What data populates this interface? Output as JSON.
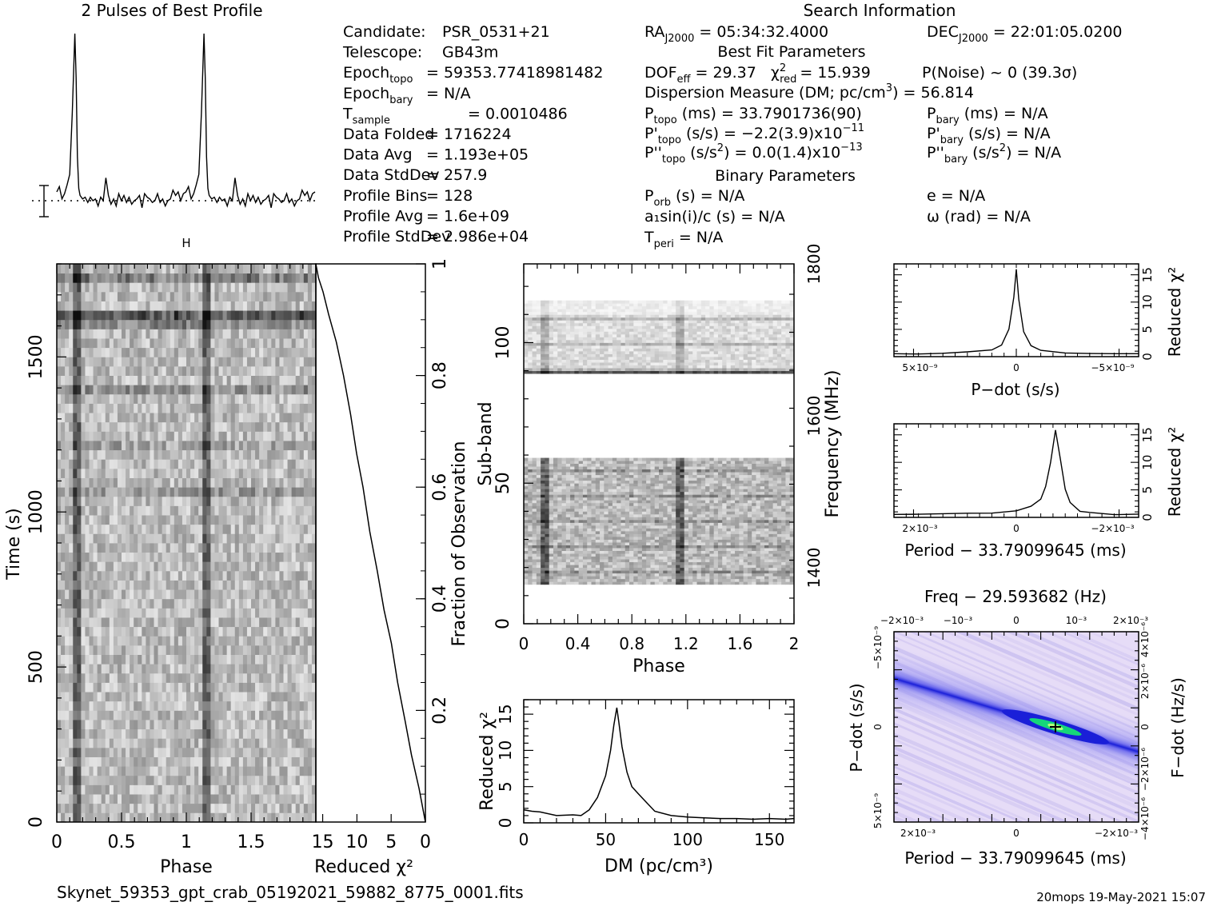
{
  "header": {
    "profile_title": "2 Pulses of Best Profile",
    "search_title": "Search Information",
    "best_fit_title": "Best Fit Parameters",
    "binary_title": "Binary Parameters",
    "footer_file": "Skynet_59353_gpt_crab_05192021_59882_8775_0001.fits",
    "footer_stamp": "20mops 19-May-2021 15:07"
  },
  "info_left": [
    {
      "label": "Candidate:",
      "sub": "",
      "value": "PSR_0531+21"
    },
    {
      "label": "Telescope:",
      "sub": "",
      "value": "GB43m"
    },
    {
      "label": "Epoch",
      "sub": "topo",
      "value": "= 59353.77418981482"
    },
    {
      "label": "Epoch",
      "sub": "bary",
      "value": "= N/A"
    },
    {
      "label": "T",
      "sub": "sample",
      "value": "=    0.0010486"
    },
    {
      "label": "Data Folded",
      "sub": "",
      "value": "=    1716224"
    },
    {
      "label": "Data Avg",
      "sub": "",
      "value": "=    1.193e+05"
    },
    {
      "label": "Data StdDev",
      "sub": "",
      "value": "=    257.9"
    },
    {
      "label": "Profile Bins",
      "sub": "",
      "value": "=    128"
    },
    {
      "label": "Profile Avg",
      "sub": "",
      "value": "=    1.6e+09"
    },
    {
      "label": "Profile StdDev",
      "sub": "",
      "value": "=    2.986e+04"
    }
  ],
  "info_mid": {
    "ra": "= 05:34:32.4000",
    "dof": "= 29.37",
    "chi2red": "= 15.939",
    "dm_line_a": "Dispersion Measure (DM; pc/cm",
    "dm_line_b": ") = 56.814",
    "p_topo": "(ms) =  33.7901736(90)",
    "pd_topo": "(s/s) = −2.2(3.9)x10",
    "pd_topo_exp": "−11",
    "pdd_topo": "(s/s",
    "pdd_topo_b": ") = 0.0(1.4)x10",
    "pdd_topo_exp": "−13",
    "p_orb": "(s) = N/A",
    "a1sini": "a₁sin(i)/c (s) = N/A",
    "t_peri": "= N/A"
  },
  "info_right": {
    "dec": "= 22:01:05.0200",
    "pnoise": "P(Noise) ~ 0    (39.3σ)",
    "p_bary": "(ms) = N/A",
    "pd_bary": "(s/s) = N/A",
    "pdd_bary": "(s/s",
    "pdd_bary_b": ") = N/A",
    "e": "e = N/A",
    "omega": "ω (rad) = N/A"
  },
  "chart_data": [
    {
      "type": "line",
      "id": "pulse_profile",
      "title": "2 Pulses of Best Profile",
      "x": [
        0.0,
        0.02,
        0.04,
        0.06,
        0.08,
        0.1,
        0.12,
        0.14,
        0.15,
        0.16,
        0.17,
        0.18,
        0.2,
        0.22,
        0.24,
        0.26,
        0.28,
        0.3,
        0.32,
        0.34,
        0.36,
        0.38,
        0.4,
        0.42,
        0.44,
        0.46,
        0.48,
        0.5,
        0.52,
        0.54,
        0.56,
        0.58,
        0.6,
        0.62,
        0.64,
        0.66,
        0.68,
        0.7,
        0.72,
        0.74,
        0.76,
        0.78,
        0.8,
        0.82,
        0.84,
        0.86,
        0.88,
        0.9,
        0.92,
        0.94,
        0.96,
        0.98,
        1.0
      ],
      "values": [
        0.1,
        0.13,
        0.06,
        0.09,
        0.14,
        0.2,
        0.55,
        1.0,
        0.75,
        0.3,
        0.12,
        0.08,
        0.06,
        0.07,
        0.04,
        0.07,
        0.05,
        0.06,
        0.02,
        0.07,
        0.05,
        0.18,
        0.08,
        0.03,
        0.06,
        0.02,
        0.09,
        0.05,
        0.08,
        0.04,
        0.07,
        0.03,
        0.05,
        0.06,
        0.08,
        0.01,
        0.09,
        0.07,
        0.06,
        0.04,
        0.05,
        0.09,
        0.04,
        0.06,
        0.02,
        0.05,
        0.06,
        0.11,
        0.08,
        0.1,
        0.05,
        0.09,
        0.1
      ],
      "phase_repeats": 2
    },
    {
      "type": "heatmap",
      "id": "time_phase",
      "xlabel": "Phase",
      "ylabel": "Time (s)",
      "xlim": [
        0,
        2
      ],
      "ylim": [
        0,
        1800
      ],
      "xticks": [
        "0",
        "0.5",
        "1",
        "1.5"
      ],
      "yticks": [
        "0",
        "500",
        "1000",
        "1500"
      ],
      "pulse_phases": [
        0.15,
        1.15
      ]
    },
    {
      "type": "line",
      "id": "chi2_vs_time",
      "xlabel": "Reduced χ²",
      "ylabel": "Fraction of Observation",
      "xlim": [
        16,
        0
      ],
      "ylim": [
        0,
        1
      ],
      "xticks": [
        "15",
        "10",
        "5",
        "0"
      ],
      "yticks": [
        "0.2",
        "0.4",
        "0.6",
        "0.8",
        "1"
      ],
      "x": [
        0,
        1,
        2,
        3,
        4,
        5,
        6,
        7,
        8,
        9,
        10,
        11,
        12,
        13,
        14,
        15,
        15.5,
        16
      ],
      "y": [
        0.0,
        0.06,
        0.12,
        0.18,
        0.25,
        0.32,
        0.38,
        0.45,
        0.52,
        0.6,
        0.66,
        0.73,
        0.8,
        0.86,
        0.91,
        0.95,
        0.975,
        1.0
      ]
    },
    {
      "type": "heatmap",
      "id": "subband_phase",
      "xlabel": "Phase",
      "ylabel": "Sub-band",
      "y2label": "Frequency (MHz)",
      "xlim": [
        0,
        2
      ],
      "ylim": [
        0,
        128
      ],
      "xticks": [
        "0",
        "0.4",
        "0.8",
        "1.2",
        "1.6",
        "2"
      ],
      "yticks": [
        "0",
        "50",
        "100"
      ],
      "y2ticks": [
        "1400",
        "1600",
        "1800"
      ],
      "masked_subbands": [
        [
          0,
          14
        ],
        [
          59,
          89
        ],
        [
          115,
          128
        ]
      ],
      "pulse_phases": [
        0.15,
        1.15
      ]
    },
    {
      "type": "line",
      "id": "chi2_vs_dm",
      "xlabel": "DM (pc/cm³)",
      "ylabel": "Reduced χ²",
      "xlim": [
        0,
        165
      ],
      "ylim": [
        0,
        17
      ],
      "xticks": [
        "0",
        "50",
        "100",
        "150"
      ],
      "yticks": [
        "0",
        "5",
        "10",
        "15"
      ],
      "x": [
        0,
        5,
        10,
        20,
        30,
        35,
        40,
        45,
        50,
        53,
        55,
        56.8,
        58,
        60,
        63,
        66,
        70,
        75,
        80,
        90,
        100,
        110,
        120,
        130,
        140,
        150,
        160,
        165
      ],
      "y": [
        1.8,
        1.6,
        1.5,
        1.0,
        1.1,
        1.0,
        1.8,
        3.5,
        6.5,
        10.0,
        13.5,
        15.9,
        14.0,
        10.5,
        7.0,
        5.0,
        4.0,
        2.8,
        1.6,
        1.0,
        0.8,
        0.7,
        0.6,
        0.6,
        0.5,
        0.6,
        0.5,
        0.6
      ]
    },
    {
      "type": "line",
      "id": "chi2_vs_pdot",
      "xlabel": "P−dot (s/s)",
      "y2label": "Reduced χ²",
      "xticks": [
        "5×10⁻⁹",
        "0",
        "−5×10⁻⁹"
      ],
      "y2ticks": [
        "0",
        "5",
        "10",
        "15"
      ],
      "xlim": [
        5e-09,
        -5e-09
      ],
      "ylim": [
        0,
        17
      ],
      "x": [
        5e-09,
        4e-09,
        3e-09,
        2e-09,
        1e-09,
        6e-10,
        3e-10,
        1e-10,
        0,
        -1e-10,
        -3e-10,
        -6e-10,
        -1e-09,
        -2e-09,
        -3e-09,
        -4e-09,
        -5e-09
      ],
      "y": [
        0.5,
        0.6,
        0.7,
        0.9,
        1.2,
        2.2,
        5.0,
        11.0,
        15.9,
        10.5,
        4.5,
        2.0,
        1.1,
        0.7,
        0.6,
        0.5,
        0.6
      ]
    },
    {
      "type": "line",
      "id": "chi2_vs_period",
      "xlabel": "Period − 33.79099645 (ms)",
      "y2label": "Reduced χ²",
      "xticks": [
        "2×10⁻³",
        "0",
        "−2×10⁻³"
      ],
      "y2ticks": [
        "0",
        "5",
        "10",
        "15"
      ],
      "xlim": [
        0.0025,
        -0.0025
      ],
      "ylim": [
        0,
        17
      ],
      "x": [
        0.0025,
        0.002,
        0.0015,
        0.001,
        0.0005,
        0.0,
        -0.0003,
        -0.0005,
        -0.0006,
        -0.0007,
        -0.0008,
        -0.0009,
        -0.001,
        -0.0011,
        -0.0013,
        -0.0015,
        -0.002,
        -0.0025
      ],
      "y": [
        0.6,
        0.5,
        0.6,
        0.7,
        0.8,
        1.1,
        2.0,
        3.2,
        5.5,
        10.0,
        15.9,
        10.5,
        5.0,
        2.6,
        1.2,
        0.8,
        0.6,
        0.5
      ]
    },
    {
      "type": "heatmap",
      "id": "period_pdot",
      "title": "Freq − 29.593682 (Hz)",
      "xlabel": "Period − 33.79099645 (ms)",
      "ylabel": "P−dot (s/s)",
      "y2label": "F−dot (Hz/s)",
      "xticks": [
        "2×10⁻³",
        "0",
        "−2×10⁻³"
      ],
      "x2ticks": [
        "−2×10⁻³",
        "−10⁻³",
        "0",
        "10⁻³",
        "2×10⁻³"
      ],
      "yticks": [
        "−5×10⁻⁹",
        "0",
        "5×10⁻⁹"
      ],
      "y2ticks": [
        "4×10⁻⁶",
        "2×10⁻⁶",
        "0",
        "−2×10⁻⁶",
        "−4×10⁻⁶"
      ],
      "best_period_offset_ms": -0.0008,
      "best_pdot": 0.0
    }
  ],
  "colors": {
    "ink": "#000000",
    "grey": "#555555",
    "ppdot_bg": "#e6dcf7",
    "ppdot_band": "#1a1fd8",
    "ppdot_peak": "#16d67a"
  }
}
